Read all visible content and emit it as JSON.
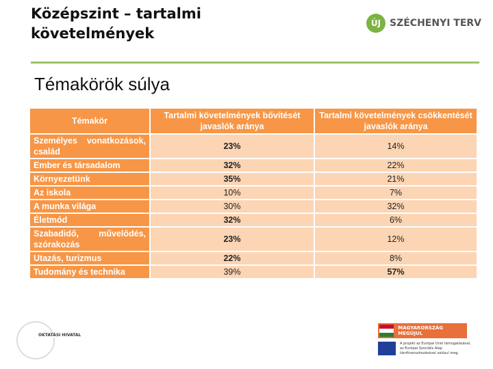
{
  "header": {
    "title_lines": [
      "Középszint – tartalmi",
      "követelmények"
    ],
    "logo": {
      "badge": "ÚJ",
      "text": "SZÉCHENYI TERV"
    }
  },
  "subtitle": "Témakörök súlya",
  "table": {
    "columns": [
      "Témakör",
      "Tartalmi követelmények bővítését javaslók aránya",
      "Tartalmi követelmények csökkentését javaslók aránya"
    ],
    "rows": [
      [
        "Személyes vonatkozások, család",
        "23%",
        "14%"
      ],
      [
        "Ember és társadalom",
        "32%",
        "22%"
      ],
      [
        "Környezetünk",
        "35%",
        "21%"
      ],
      [
        "Az iskola",
        "10%",
        "7%"
      ],
      [
        "A munka világa",
        "30%",
        "32%"
      ],
      [
        "Életmód",
        "32%",
        "6%"
      ],
      [
        "Szabadidő, művelődés, szórakozás",
        "23%",
        "12%"
      ],
      [
        "Utazás, turizmus",
        "22%",
        "8%"
      ],
      [
        "Tudomány és technika",
        "39%",
        "57%"
      ]
    ],
    "bold": [
      [
        0,
        1
      ],
      [
        1,
        1
      ],
      [
        2,
        1
      ],
      [
        5,
        1
      ],
      [
        6,
        1
      ],
      [
        7,
        1
      ],
      [
        8,
        2
      ]
    ]
  },
  "footer": {
    "left_logo": "OKTATÁSI HIVATAL",
    "right_banner": "MAGYARORSZÁG MEGÚJUL",
    "eu_note": "A projekt az Európai Unió támogatásával, az Európai Szociális Alap társfinanszírozásával valósul meg."
  }
}
